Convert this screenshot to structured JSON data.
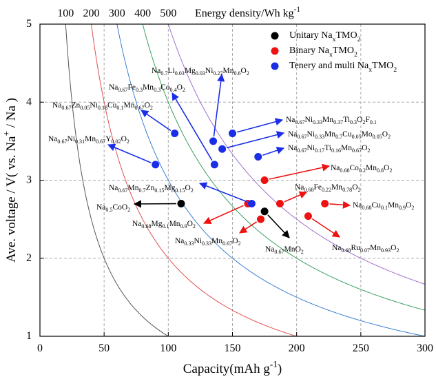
{
  "chart_data": {
    "type": "scatter",
    "xlabel": "Capacity(mAh g-1)",
    "ylabel": "Ave. voltage / V( vs. Na+ / Na )",
    "xlim": [
      0,
      300
    ],
    "xticks": [
      0,
      50,
      100,
      150,
      200,
      250,
      300
    ],
    "ylim": [
      1,
      5
    ],
    "yticks": [
      1,
      2,
      3,
      4,
      5
    ],
    "grid": true,
    "energy_curves": {
      "title": "Energy density/Wh kg-1",
      "values": [
        100,
        200,
        300,
        400,
        500
      ],
      "colors": [
        "#555555",
        "#e05050",
        "#3a7fd0",
        "#3aa060",
        "#a070d0"
      ]
    },
    "series": [
      {
        "name": "Unitary NaxTMO2",
        "color": "#000000",
        "x": [
          110,
          175
        ],
        "y": [
          2.7,
          2.6
        ],
        "labels": [
          "Na0.5CoO2",
          "Na0.67MnO2"
        ]
      },
      {
        "name": "Binary NaxTMO2",
        "color": "#ee1111",
        "x": [
          175,
          162,
          187,
          172,
          209,
          222
        ],
        "y": [
          3.0,
          2.7,
          2.7,
          2.5,
          2.54,
          2.7
        ],
        "labels": [
          "Na0.68Co0.2Mn0.8O2",
          "Na0.68Mg0.1Mn0.9O2",
          "Na0.68Fe0.22Mn0.78O2",
          "Na0.33Ni0.33Mn0.67O2",
          "Na0.68Ru0.07Mn0.93O2",
          "Na0.68Cu0.1Mn0.9O2"
        ]
      },
      {
        "name": "Tenery and multi NaxTMO2",
        "color": "#1a2ee8",
        "x": [
          105,
          90,
          136,
          135,
          150,
          142,
          170,
          165
        ],
        "y": [
          3.6,
          3.2,
          3.2,
          3.5,
          3.6,
          3.4,
          3.3,
          2.7
        ],
        "labels": [
          "Na0.67Zn0.05Ni0.18Cu0.1Mn0.67O2",
          "Na0.67Ni0.31Mn0.67Y0.02O2",
          "Na0.67Fe0.3Mn0.3Co0.4O2",
          "Na0.7Li0.03Mg0.03Ni0.27Mn0.6O2",
          "Na0.67Ni0.33Mn0.37Ti0.3O2F0.1",
          "Na0.67Ni0.33Mn0.7Cu0.05Mo0.05O2",
          "Na0.67Ni0.17Ti0.16Mn0.67O2",
          "Na0.67Mn0.7Zn0.15Mg0.15O2"
        ]
      }
    ]
  }
}
